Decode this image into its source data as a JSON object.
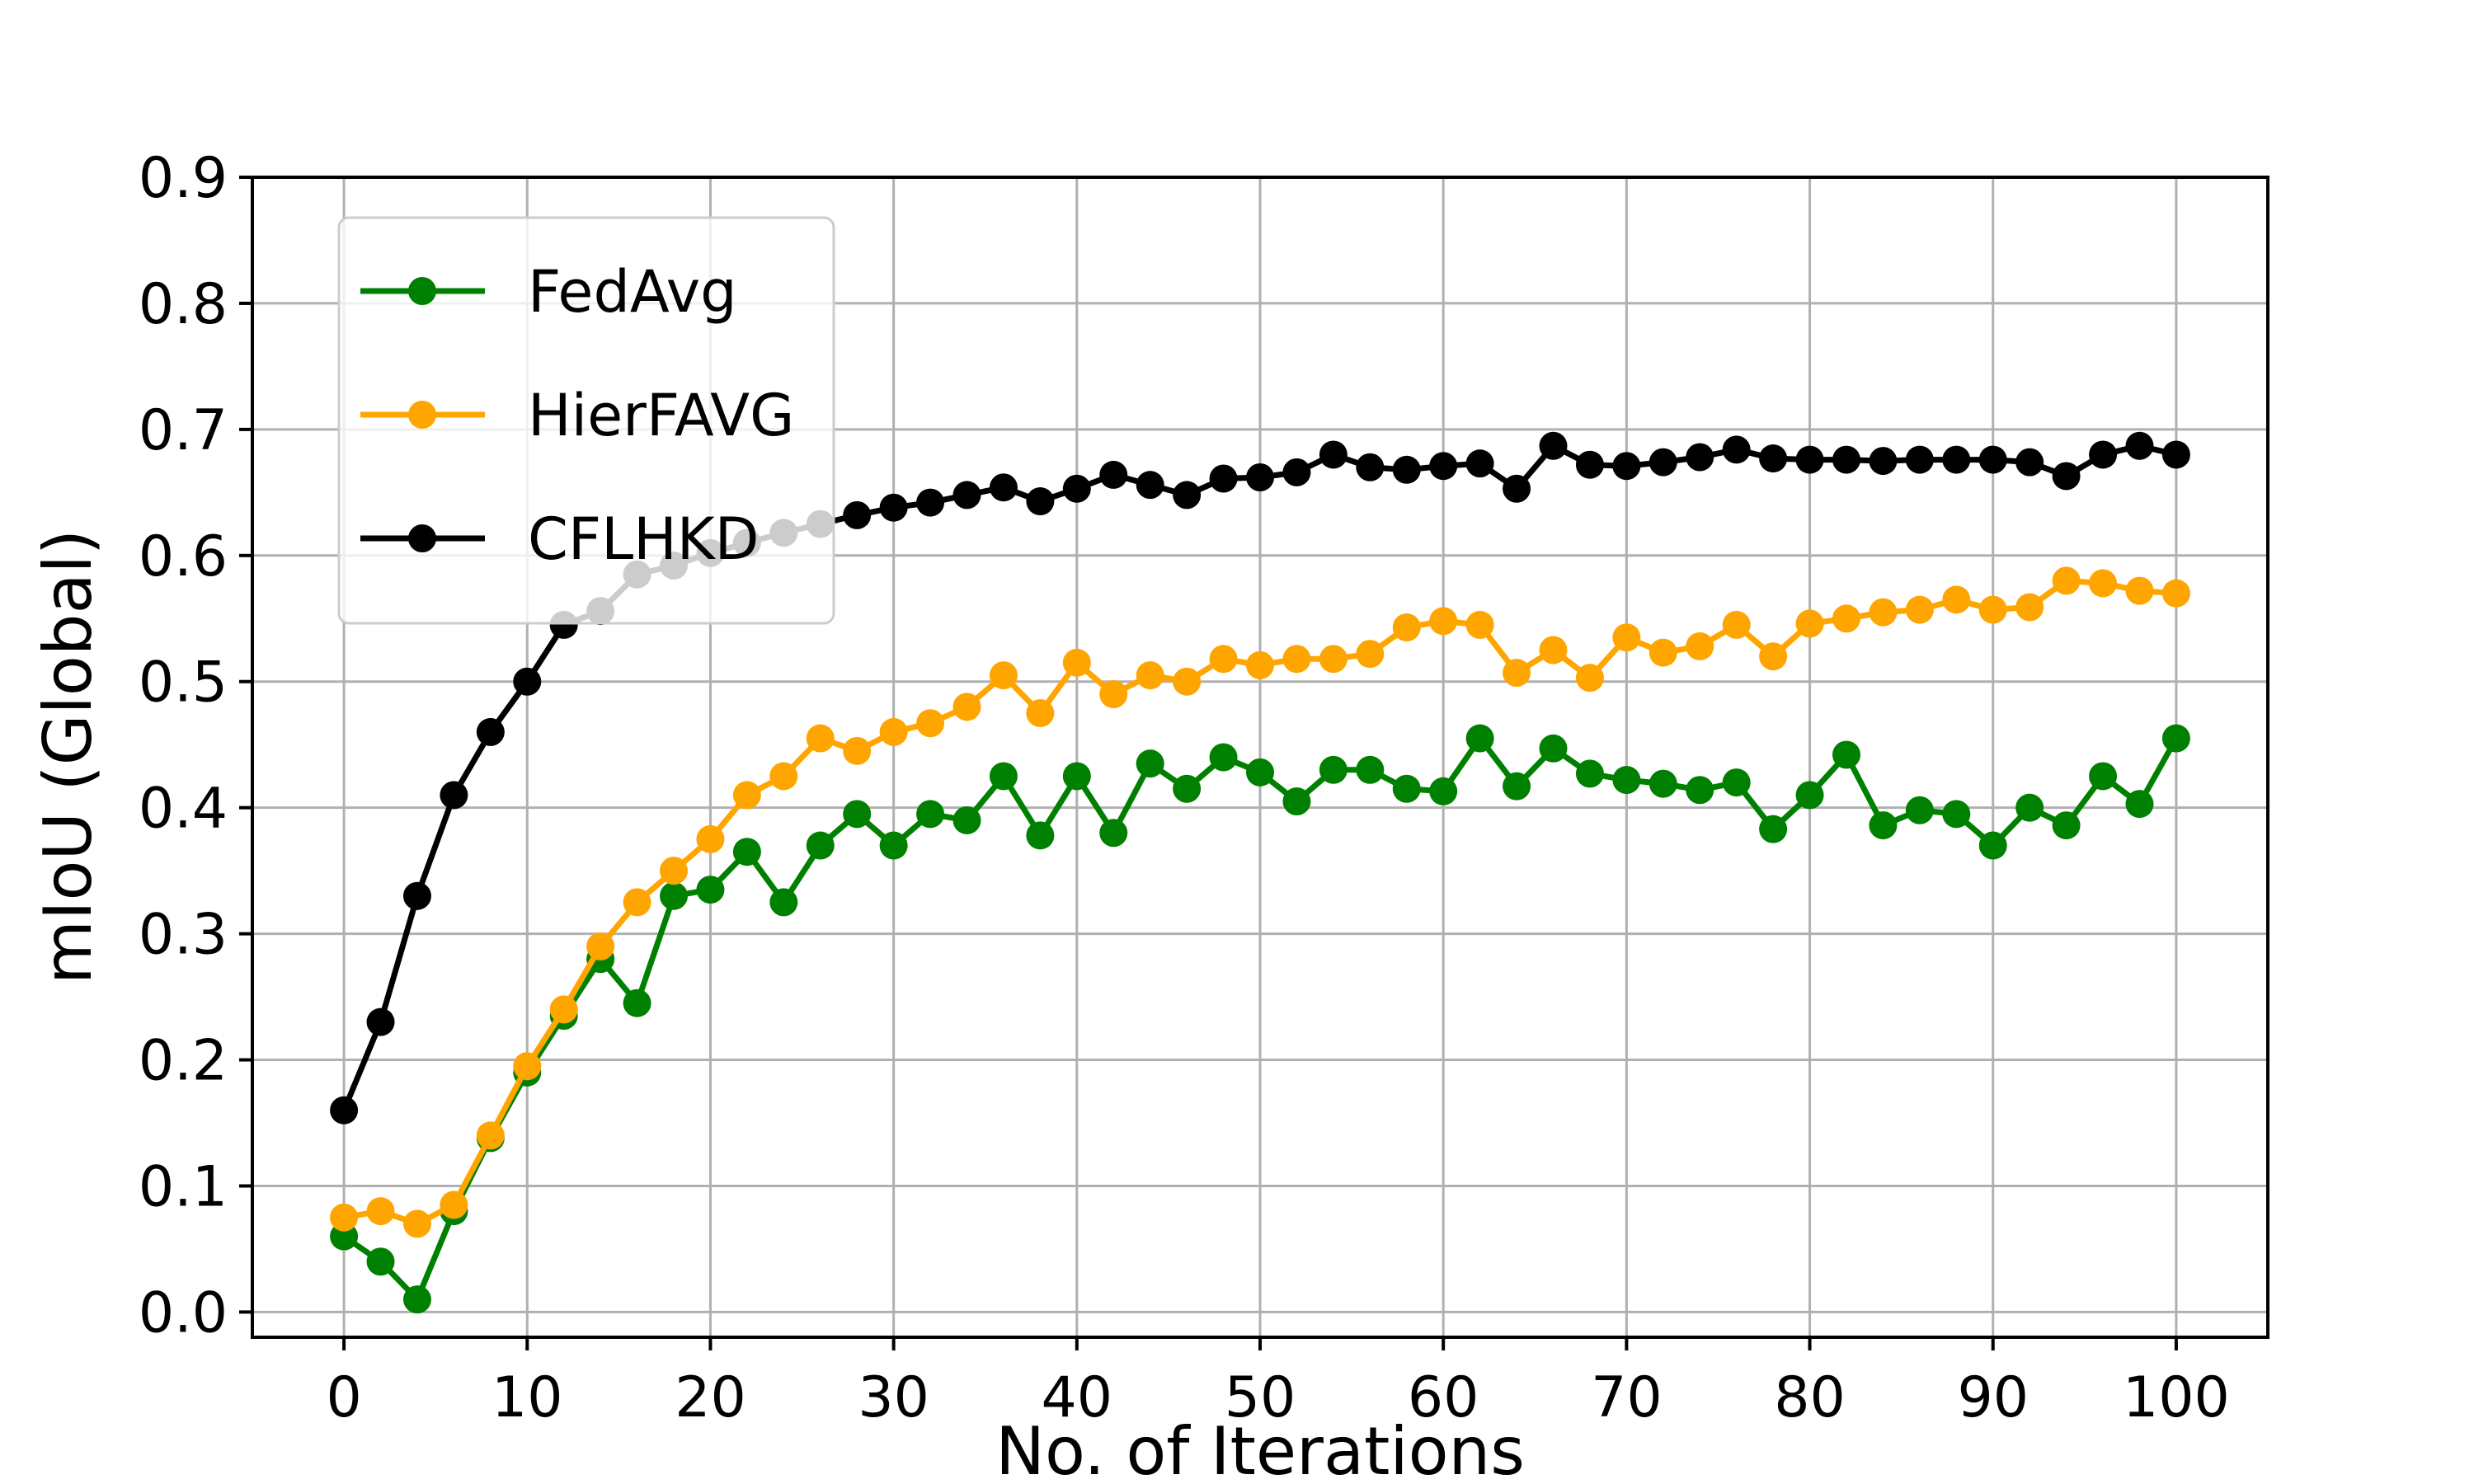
{
  "chart_data": {
    "type": "line",
    "title": "",
    "xlabel": "No. of Iterations",
    "ylabel": "mIoU (Global)",
    "grid": true,
    "grid_color": "#b0b0b0",
    "background_color": "#ffffff",
    "legend_position": "upper left",
    "xlim": [
      -5,
      105
    ],
    "ylim": [
      -0.02,
      0.9
    ],
    "xticks": [
      0,
      10,
      20,
      30,
      40,
      50,
      60,
      70,
      80,
      90,
      100
    ],
    "ytick_labels": [
      "0.0",
      "0.1",
      "0.2",
      "0.3",
      "0.4",
      "0.5",
      "0.6",
      "0.7",
      "0.8",
      "0.9"
    ],
    "yticks": [
      0.0,
      0.1,
      0.2,
      0.3,
      0.4,
      0.5,
      0.6,
      0.7,
      0.8,
      0.9
    ],
    "x": [
      0,
      2,
      4,
      6,
      8,
      10,
      12,
      14,
      16,
      18,
      20,
      22,
      24,
      26,
      28,
      30,
      32,
      34,
      36,
      38,
      40,
      42,
      44,
      46,
      48,
      50,
      52,
      54,
      56,
      58,
      60,
      62,
      64,
      66,
      68,
      70,
      72,
      74,
      76,
      78,
      80,
      82,
      84,
      86,
      88,
      90,
      92,
      94,
      96,
      98,
      100
    ],
    "series": [
      {
        "name": "FedAvg",
        "color": "#008000",
        "values": [
          0.06,
          0.04,
          0.01,
          0.08,
          0.138,
          0.19,
          0.235,
          0.28,
          0.245,
          0.33,
          0.335,
          0.365,
          0.325,
          0.37,
          0.395,
          0.37,
          0.395,
          0.39,
          0.425,
          0.378,
          0.425,
          0.38,
          0.435,
          0.415,
          0.44,
          0.428,
          0.405,
          0.43,
          0.43,
          0.415,
          0.413,
          0.455,
          0.417,
          0.447,
          0.427,
          0.422,
          0.419,
          0.414,
          0.42,
          0.383,
          0.41,
          0.442,
          0.386,
          0.398,
          0.395,
          0.37,
          0.4,
          0.386,
          0.425,
          0.403,
          0.455
        ]
      },
      {
        "name": "HierFAVG",
        "color": "#FFA500",
        "values": [
          0.075,
          0.08,
          0.07,
          0.085,
          0.14,
          0.195,
          0.24,
          0.29,
          0.325,
          0.35,
          0.375,
          0.41,
          0.425,
          0.455,
          0.445,
          0.46,
          0.467,
          0.48,
          0.505,
          0.475,
          0.515,
          0.49,
          0.505,
          0.5,
          0.518,
          0.513,
          0.518,
          0.518,
          0.522,
          0.543,
          0.548,
          0.545,
          0.507,
          0.525,
          0.503,
          0.535,
          0.523,
          0.528,
          0.545,
          0.52,
          0.546,
          0.55,
          0.555,
          0.557,
          0.565,
          0.557,
          0.559,
          0.58,
          0.578,
          0.572,
          0.57
        ]
      },
      {
        "name": "CFLHKD",
        "color": "#000000",
        "values": [
          0.16,
          0.23,
          0.33,
          0.41,
          0.46,
          0.5,
          0.545,
          0.556,
          0.585,
          0.592,
          0.602,
          0.61,
          0.618,
          0.625,
          0.632,
          0.638,
          0.642,
          0.648,
          0.654,
          0.643,
          0.653,
          0.664,
          0.656,
          0.648,
          0.661,
          0.662,
          0.666,
          0.68,
          0.67,
          0.668,
          0.671,
          0.673,
          0.653,
          0.687,
          0.672,
          0.671,
          0.674,
          0.678,
          0.684,
          0.677,
          0.676,
          0.676,
          0.675,
          0.676,
          0.676,
          0.676,
          0.674,
          0.663,
          0.68,
          0.687,
          0.68
        ]
      }
    ]
  }
}
